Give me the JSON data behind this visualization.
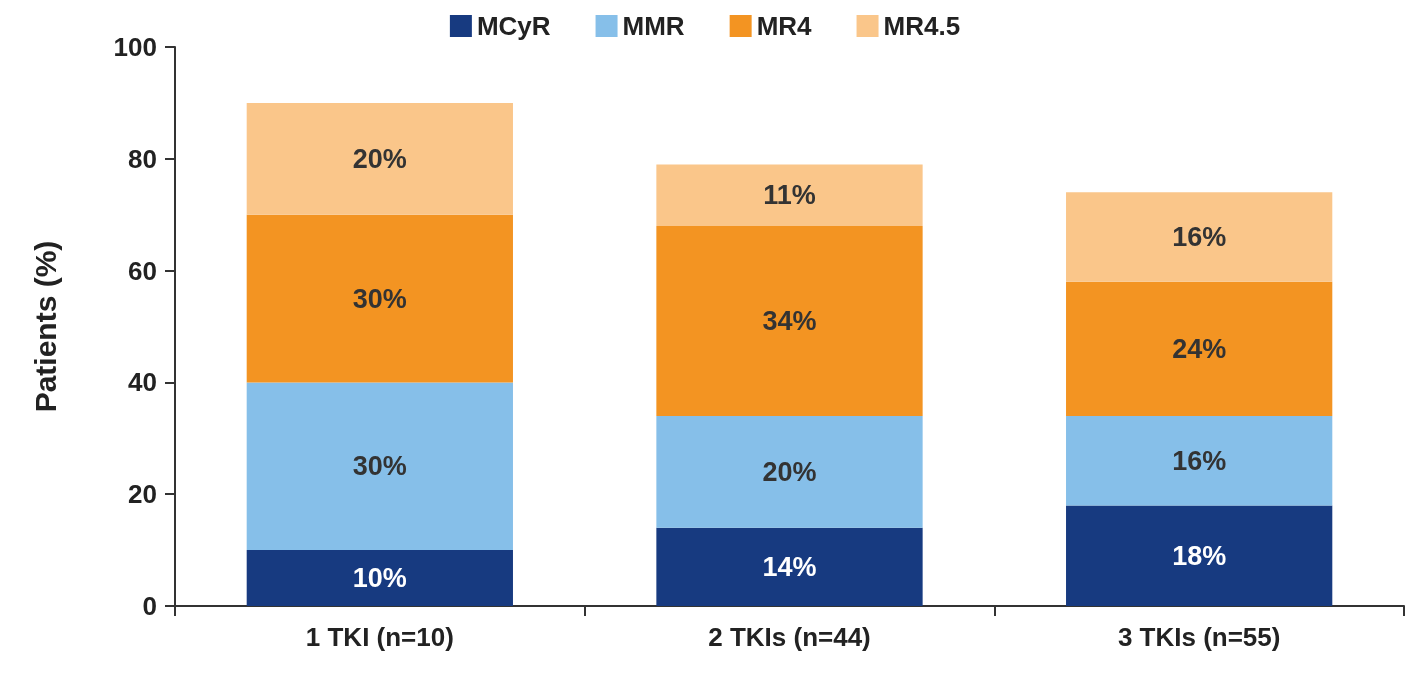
{
  "chart_data": {
    "type": "bar",
    "stacked": true,
    "ylabel": "Patients (%)",
    "categories": [
      "1 TKI (n=10)",
      "2 TKIs (n=44)",
      "3 TKIs (n=55)"
    ],
    "series": [
      {
        "name": "MCyR",
        "color": "#173a80",
        "values": [
          10,
          14,
          18
        ],
        "value_labels": [
          "10%",
          "14%",
          "18%"
        ]
      },
      {
        "name": "MMR",
        "color": "#86bfe9",
        "values": [
          30,
          20,
          16
        ],
        "value_labels": [
          "30%",
          "20%",
          "16%"
        ]
      },
      {
        "name": "MR4",
        "color": "#f39422",
        "values": [
          30,
          34,
          24
        ],
        "value_labels": [
          "30%",
          "34%",
          "24%"
        ]
      },
      {
        "name": "MR4.5",
        "color": "#fac68a",
        "values": [
          20,
          11,
          16
        ],
        "value_labels": [
          "20%",
          "11%",
          "16%"
        ]
      }
    ],
    "ylim": [
      0,
      100
    ],
    "yticks": [
      0,
      20,
      40,
      60,
      80,
      100
    ],
    "grid": false,
    "legend": "top"
  }
}
